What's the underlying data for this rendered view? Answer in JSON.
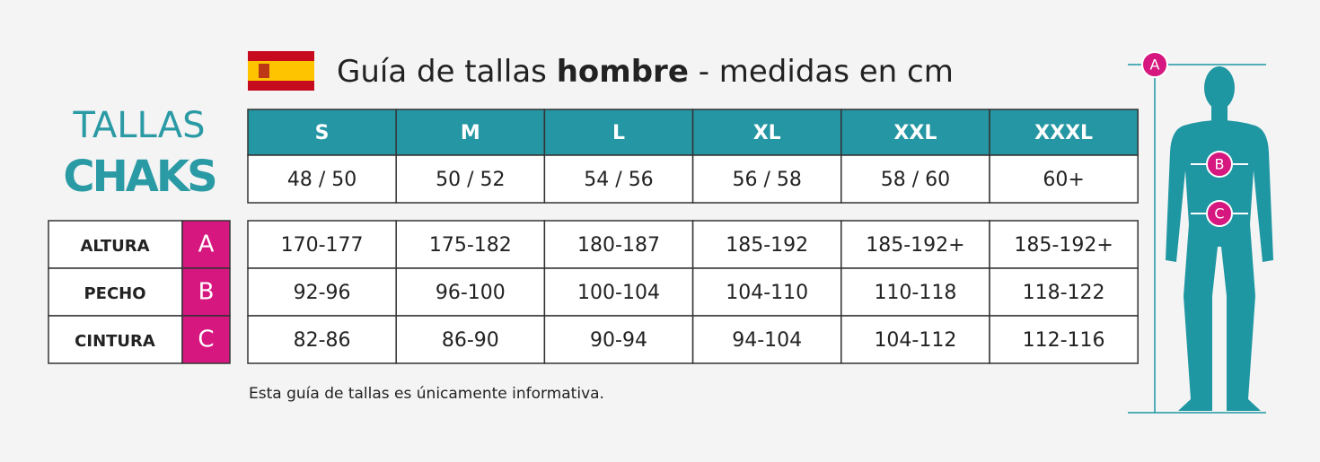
{
  "header": {
    "title_start": "Guía de tallas",
    "title_bold": "hombre",
    "title_end": "- medidas en cm"
  },
  "brand": {
    "line1": "TALLAS",
    "line2": "CHAKS"
  },
  "sizes": [
    "S",
    "M",
    "L",
    "XL",
    "XXL",
    "XXXL"
  ],
  "eu_sizes": [
    "48 / 50",
    "50 / 52",
    "54 / 56",
    "56 / 58",
    "58 / 60",
    "60+"
  ],
  "rows": [
    {
      "label": "ALTURA",
      "letter": "A",
      "values": [
        "170-177",
        "175-182",
        "180-187",
        "185-192",
        "185-192+",
        "185-192+"
      ]
    },
    {
      "label": "PECHO",
      "letter": "B",
      "values": [
        "92-96",
        "96-100",
        "100-104",
        "104-110",
        "110-118",
        "118-122"
      ]
    },
    {
      "label": "CINTURA",
      "letter": "C",
      "values": [
        "82-86",
        "86-90",
        "90-94",
        "94-104",
        "104-112",
        "112-116"
      ]
    }
  ],
  "note": "Esta guía de tallas es únicamente informativa."
}
